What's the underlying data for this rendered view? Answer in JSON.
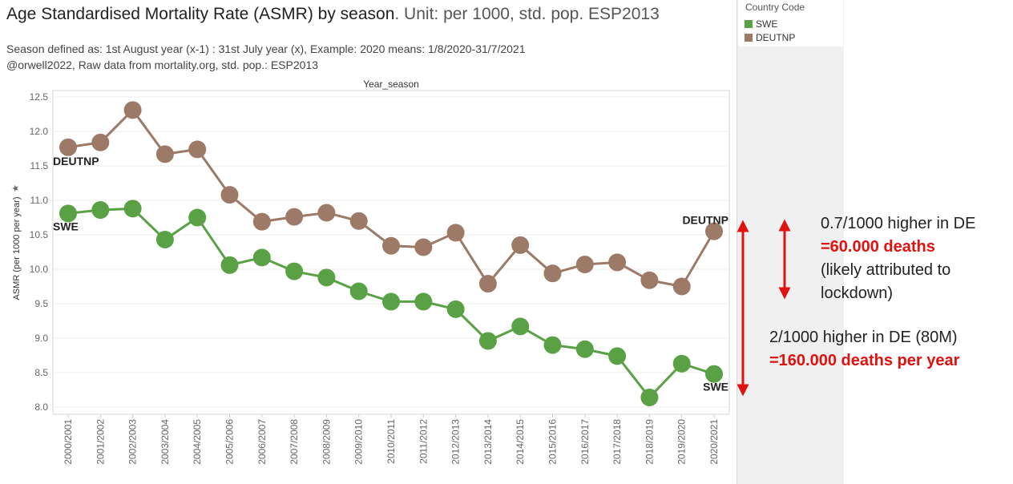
{
  "title": {
    "main": "Age Standardised Mortality Rate (ASMR) by season",
    "unit": ". Unit: per 1000, std. pop. ESP2013"
  },
  "subtitle1": "Season defined as: 1st August year (x-1) : 31st July  year (x), Example: 2020 means: 1/8/2020-31/7/2021",
  "subtitle2": "@orwell2022,  Raw data from mortality.org, std. pop.: ESP2013",
  "legend": {
    "title": "Country Code",
    "items": [
      {
        "label": "SWE",
        "color": "#5aa146"
      },
      {
        "label": "DEUTNP",
        "color": "#9c7a67"
      }
    ]
  },
  "annotations": {
    "a1_line1": "0.7/1000 higher in DE",
    "a1_line2": "=60.000 deaths",
    "a1_line3": "(likely attributed to",
    "a1_line4": "lockdown)",
    "a2_line1": "2/1000 higher in DE (80M)",
    "a2_line2": "=160.000 deaths per year",
    "arrow_color": "#e0120f",
    "highlight_color": "#e0120f"
  },
  "chart_data": {
    "type": "line",
    "title": "Year_season",
    "ylabel": "ASMR (per 1000 per year)",
    "xlabel": "",
    "ylim": [
      8.0,
      12.5
    ],
    "yticks": [
      8.0,
      8.5,
      9.0,
      9.5,
      10.0,
      10.5,
      11.0,
      11.5,
      12.0,
      12.5
    ],
    "grid": true,
    "categories": [
      "2000/2001",
      "2001/2002",
      "2002/2003",
      "2003/2004",
      "2004/2005",
      "2005/2006",
      "2006/2007",
      "2007/2008",
      "2008/2009",
      "2009/2010",
      "2010/2011",
      "2011/2012",
      "2012/2013",
      "2013/2014",
      "2014/2015",
      "2015/2016",
      "2016/2017",
      "2017/2018",
      "2018/2019",
      "2019/2020",
      "2020/2021"
    ],
    "series": [
      {
        "name": "DEUTNP",
        "color": "#9c7a67",
        "values": [
          11.77,
          11.84,
          12.31,
          11.67,
          11.74,
          11.08,
          10.69,
          10.76,
          10.82,
          10.7,
          10.34,
          10.32,
          10.53,
          9.79,
          10.35,
          9.94,
          10.07,
          10.1,
          9.84,
          9.75,
          10.55
        ],
        "start_label": "DEUTNP",
        "end_label": "DEUTNP"
      },
      {
        "name": "SWE",
        "color": "#5aa146",
        "values": [
          10.81,
          10.86,
          10.88,
          10.43,
          10.75,
          10.06,
          10.17,
          9.97,
          9.88,
          9.68,
          9.53,
          9.53,
          9.42,
          8.96,
          9.17,
          8.9,
          8.84,
          8.74,
          8.14,
          8.63,
          8.48
        ],
        "start_label": "SWE",
        "end_label": "SWE"
      }
    ]
  }
}
